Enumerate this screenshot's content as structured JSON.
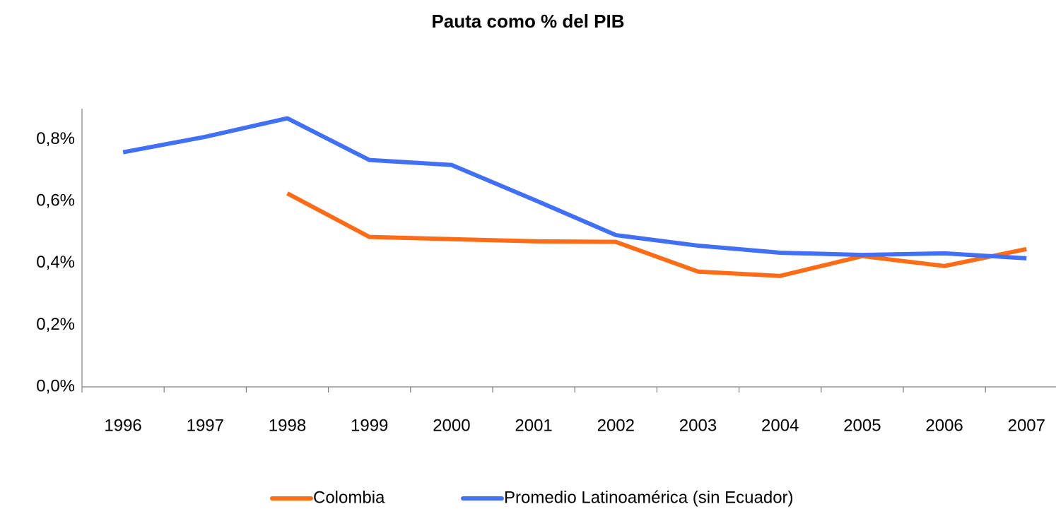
{
  "chart_data": {
    "type": "line",
    "title": "Pauta como % del PIB",
    "categories": [
      "1996",
      "1997",
      "1998",
      "1999",
      "2000",
      "2001",
      "2002",
      "2003",
      "2004",
      "2005",
      "2006",
      "2007"
    ],
    "series": [
      {
        "name": "Colombia",
        "color": "#fe6c17",
        "values": [
          null,
          null,
          0.626,
          0.485,
          0.478,
          0.471,
          0.469,
          0.373,
          0.359,
          0.423,
          0.391,
          0.446
        ]
      },
      {
        "name": "Promedio Latinoamérica (sin Ecuador)",
        "color": "#4170f5",
        "values": [
          0.759,
          0.809,
          0.869,
          0.734,
          0.718,
          0.606,
          0.491,
          0.457,
          0.434,
          0.427,
          0.432,
          0.416
        ]
      }
    ],
    "ylim": [
      0,
      0.9
    ],
    "yticks": [
      {
        "value": 0,
        "label": "0,0%"
      },
      {
        "value": 0.2,
        "label": "0,2%"
      },
      {
        "value": 0.4,
        "label": "0,4%"
      },
      {
        "value": 0.6,
        "label": "0,6%"
      },
      {
        "value": 0.8,
        "label": "0,8%"
      }
    ],
    "grid": false,
    "legend": "bottom"
  }
}
